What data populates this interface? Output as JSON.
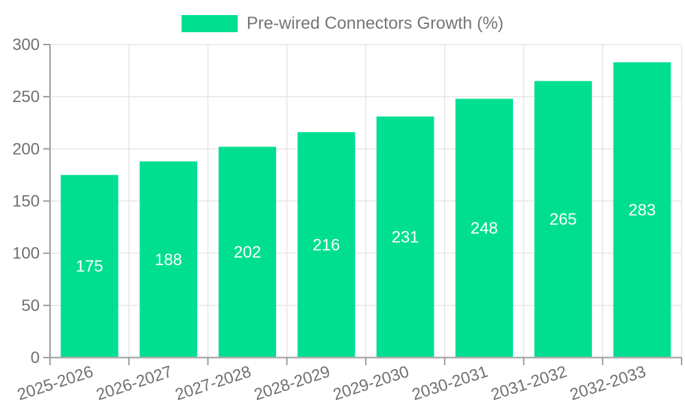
{
  "legend": {
    "label": "Pre-wired Connectors Growth (%)"
  },
  "chart_data": {
    "type": "bar",
    "title": "Pre-wired Connectors Growth (%)",
    "categories": [
      "2025-2026",
      "2026-2027",
      "2027-2028",
      "2028-2029",
      "2029-2030",
      "2030-2031",
      "2031-2032",
      "2032-2033"
    ],
    "values": [
      175,
      188,
      202,
      216,
      231,
      248,
      265,
      283
    ],
    "xlabel": "",
    "ylabel": "",
    "ylim": [
      0,
      300
    ],
    "yticks": [
      0,
      50,
      100,
      150,
      200,
      250,
      300
    ],
    "grid": true,
    "legend_position": "top-center",
    "colors": {
      "bar": "#00DF90",
      "bar_label_text": "#ffffff",
      "grid_line": "#e6e6e6",
      "y_axis_line": "#9a9a9a",
      "x_axis_line": "#adadad",
      "tick_line": "#9a9a9a",
      "axis_text": "#707070",
      "legend_text": "#757575"
    }
  }
}
